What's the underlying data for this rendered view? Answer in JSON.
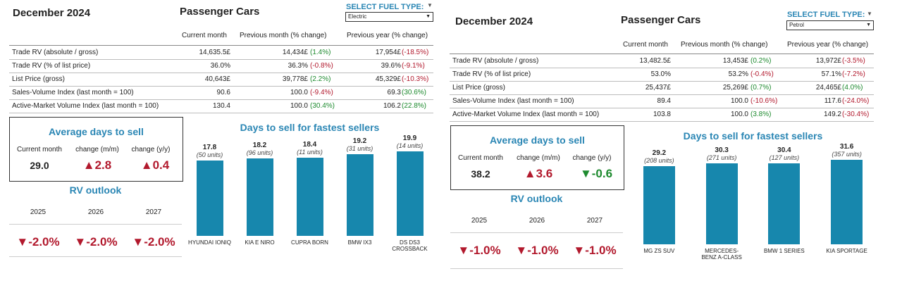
{
  "panels": [
    {
      "date": "December 2024",
      "title": "Passenger Cars",
      "fuel_label": "SELECT FUEL TYPE:",
      "fuel_value": "Electric",
      "columns": [
        "Current month",
        "Previous month (% change)",
        "Previous year (% change)"
      ],
      "rows": [
        {
          "label": "Trade RV (absolute / gross)",
          "cur": "14,635.5£",
          "prev": "14,434£",
          "prev_chg": "(1.4%)",
          "prev_dir": "pos",
          "year": "17,954£",
          "year_chg": "(-18.5%)",
          "year_dir": "neg"
        },
        {
          "label": "Trade RV (% of list price)",
          "cur": "36.0%",
          "prev": "36.3%",
          "prev_chg": "(-0.8%)",
          "prev_dir": "neg",
          "year": "39.6%",
          "year_chg": "(-9.1%)",
          "year_dir": "neg"
        },
        {
          "label": "List Price (gross)",
          "cur": "40,643£",
          "prev": "39,778£",
          "prev_chg": "(2.2%)",
          "prev_dir": "pos",
          "year": "45,329£",
          "year_chg": "(-10.3%)",
          "year_dir": "neg"
        },
        {
          "label": "Sales-Volume Index (last month = 100)",
          "cur": "90.6",
          "prev": "100.0",
          "prev_chg": "(-9.4%)",
          "prev_dir": "neg",
          "year": "69.3",
          "year_chg": "(30.6%)",
          "year_dir": "pos"
        },
        {
          "label": "Active-Market Volume Index (last month = 100)",
          "cur": "130.4",
          "prev": "100.0",
          "prev_chg": "(30.4%)",
          "prev_dir": "pos",
          "year": "106.2",
          "year_chg": "(22.8%)",
          "year_dir": "pos"
        }
      ],
      "avg_days": {
        "title": "Average days to sell",
        "headers": [
          "Current month",
          "change (m/m)",
          "change (y/y)"
        ],
        "current": "29.0",
        "mm": "▲2.8",
        "mm_dir": "red",
        "yy": "▲0.4",
        "yy_dir": "red"
      },
      "outlook": {
        "title": "RV outlook",
        "years": [
          "2025",
          "2026",
          "2027"
        ],
        "values": [
          "▼-2.0%",
          "▼-2.0%",
          "▼-2.0%"
        ]
      },
      "chart_data": {
        "type": "bar",
        "title": "Days to sell for fastest sellers",
        "categories": [
          "HYUNDAI IONIQ",
          "KIA E NIRO",
          "CUPRA BORN",
          "BMW IX3",
          "DS DS3 CROSSBACK"
        ],
        "values": [
          17.8,
          18.2,
          18.4,
          19.2,
          19.9
        ],
        "units": [
          "(50 units)",
          "(96 units)",
          "(11 units)",
          "(31 units)",
          "(14 units)"
        ],
        "color": "#1787ad"
      }
    },
    {
      "date": "December 2024",
      "title": "Passenger Cars",
      "fuel_label": "SELECT FUEL TYPE:",
      "fuel_value": "Petrol",
      "columns": [
        "Current month",
        "Previous month (% change)",
        "Previous year (% change)"
      ],
      "rows": [
        {
          "label": "Trade RV (absolute / gross)",
          "cur": "13,482.5£",
          "prev": "13,453£",
          "prev_chg": "(0.2%)",
          "prev_dir": "pos",
          "year": "13,972£",
          "year_chg": "(-3.5%)",
          "year_dir": "neg"
        },
        {
          "label": "Trade RV (% of list price)",
          "cur": "53.0%",
          "prev": "53.2%",
          "prev_chg": "(-0.4%)",
          "prev_dir": "neg",
          "year": "57.1%",
          "year_chg": "(-7.2%)",
          "year_dir": "neg"
        },
        {
          "label": "List Price (gross)",
          "cur": "25,437£",
          "prev": "25,269£",
          "prev_chg": "(0.7%)",
          "prev_dir": "pos",
          "year": "24,465£",
          "year_chg": "(4.0%)",
          "year_dir": "pos"
        },
        {
          "label": "Sales-Volume Index (last month = 100)",
          "cur": "89.4",
          "prev": "100.0",
          "prev_chg": "(-10.6%)",
          "prev_dir": "neg",
          "year": "117.6",
          "year_chg": "(-24.0%)",
          "year_dir": "neg"
        },
        {
          "label": "Active-Market Volume Index (last month = 100)",
          "cur": "103.8",
          "prev": "100.0",
          "prev_chg": "(3.8%)",
          "prev_dir": "pos",
          "year": "149.2",
          "year_chg": "(-30.4%)",
          "year_dir": "neg"
        }
      ],
      "avg_days": {
        "title": "Average days to sell",
        "headers": [
          "Current month",
          "change (m/m)",
          "change (y/y)"
        ],
        "current": "38.2",
        "mm": "▲3.6",
        "mm_dir": "red",
        "yy": "▼-0.6",
        "yy_dir": "green"
      },
      "outlook": {
        "title": "RV outlook",
        "years": [
          "2025",
          "2026",
          "2027"
        ],
        "values": [
          "▼-1.0%",
          "▼-1.0%",
          "▼-1.0%"
        ]
      },
      "chart_data": {
        "type": "bar",
        "title": "Days to sell for fastest sellers",
        "categories": [
          "MG ZS SUV",
          "MERCEDES-BENZ A-CLASS",
          "BMW 1 SERIES",
          "KIA SPORTAGE"
        ],
        "values": [
          29.2,
          30.3,
          30.4,
          31.6
        ],
        "units": [
          "(208 units)",
          "(271 units)",
          "(127 units)",
          "(357 units)"
        ],
        "color": "#1787ad"
      }
    }
  ]
}
